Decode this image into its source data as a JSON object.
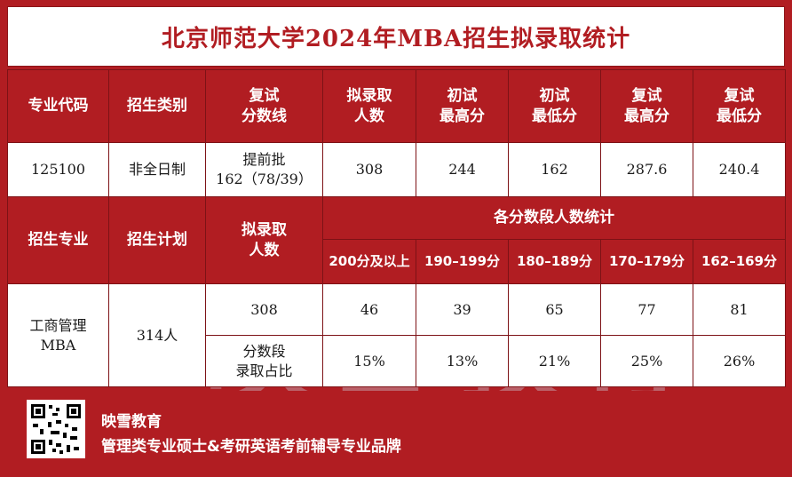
{
  "title": "北京师范大学2024年MBA招生拟录取统计",
  "header1": {
    "code": "专业代码",
    "category": "招生类别",
    "score_line_a": "复试",
    "score_line_b": "分数线",
    "admitted_a": "拟录取",
    "admitted_b": "人数",
    "first_max_a": "初试",
    "first_max_b": "最高分",
    "first_min_a": "初试",
    "first_min_b": "最低分",
    "re_max_a": "复试",
    "re_max_b": "最高分",
    "re_min_a": "复试",
    "re_min_b": "最低分"
  },
  "row1": {
    "code": "125100",
    "category": "非全日制",
    "score_line_a": "提前批",
    "score_line_b": "162（78/39）",
    "admitted": "308",
    "first_max": "244",
    "first_min": "162",
    "re_max": "287.6",
    "re_min": "240.4"
  },
  "header2": {
    "major": "招生专业",
    "plan": "招生计划",
    "admitted_a": "拟录取",
    "admitted_b": "人数",
    "dist_title": "各分数段人数统计",
    "bands": [
      "200分及以上",
      "190–199分",
      "180–189分",
      "170–179分",
      "162–169分"
    ]
  },
  "row2": {
    "major_a": "工商管理",
    "major_b": "MBA",
    "plan": "314人",
    "admitted": "308",
    "counts": [
      "46",
      "39",
      "65",
      "77",
      "81"
    ],
    "ratio_label_a": "分数段",
    "ratio_label_b": "录取占比",
    "ratios": [
      "15%",
      "13%",
      "21%",
      "25%",
      "26%"
    ]
  },
  "watermark": "映雪教育",
  "footer": {
    "brand": "映雪教育",
    "slogan": "管理类专业硕士&考研英语考前辅导专业品牌"
  },
  "colors": {
    "primary": "#b11d22",
    "border": "#7d1216",
    "text": "#1a1a1a"
  }
}
